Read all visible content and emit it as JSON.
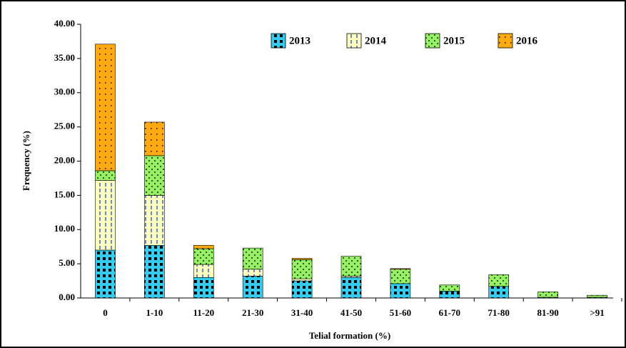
{
  "chart_data": {
    "type": "bar",
    "stacked": true,
    "x_label": "Telial formation (%)",
    "y_label": "Frequency (%)",
    "categories": [
      "0",
      "1-10",
      "11-20",
      "21-30",
      "31-40",
      "41-50",
      "51-60",
      "61-70",
      "71-80",
      "81-90",
      ">91"
    ],
    "series": [
      {
        "name": "2013",
        "color": "#33ccee",
        "values": [
          7.0,
          7.7,
          3.0,
          3.2,
          2.5,
          3.0,
          2.1,
          1.0,
          1.7,
          0.1,
          0.1
        ]
      },
      {
        "name": "2014",
        "color": "#ffffc0",
        "values": [
          10.2,
          7.3,
          1.9,
          1.0,
          0.3,
          0.2,
          0.0,
          0.0,
          0.0,
          0.0,
          0.0
        ]
      },
      {
        "name": "2015",
        "color": "#99ee66",
        "values": [
          1.4,
          5.8,
          2.3,
          3.1,
          2.8,
          2.9,
          2.1,
          0.9,
          1.7,
          0.8,
          0.3
        ]
      },
      {
        "name": "2016",
        "color": "#ffaa11",
        "values": [
          18.5,
          4.9,
          0.5,
          0.0,
          0.2,
          0.0,
          0.1,
          0.0,
          0.0,
          0.0,
          0.0
        ]
      }
    ],
    "ylim": [
      0,
      40
    ],
    "yticks": [
      {
        "value": 0,
        "label": "0.00"
      },
      {
        "value": 5,
        "label": "5.00"
      },
      {
        "value": 10,
        "label": "10.00"
      },
      {
        "value": 15,
        "label": "15.00"
      },
      {
        "value": 20,
        "label": "20.00"
      },
      {
        "value": 25,
        "label": "25.00"
      },
      {
        "value": 30,
        "label": "30.00"
      },
      {
        "value": 35,
        "label": "35.00"
      },
      {
        "value": 40,
        "label": "40.00"
      }
    ],
    "grid": false,
    "legend": "top"
  }
}
